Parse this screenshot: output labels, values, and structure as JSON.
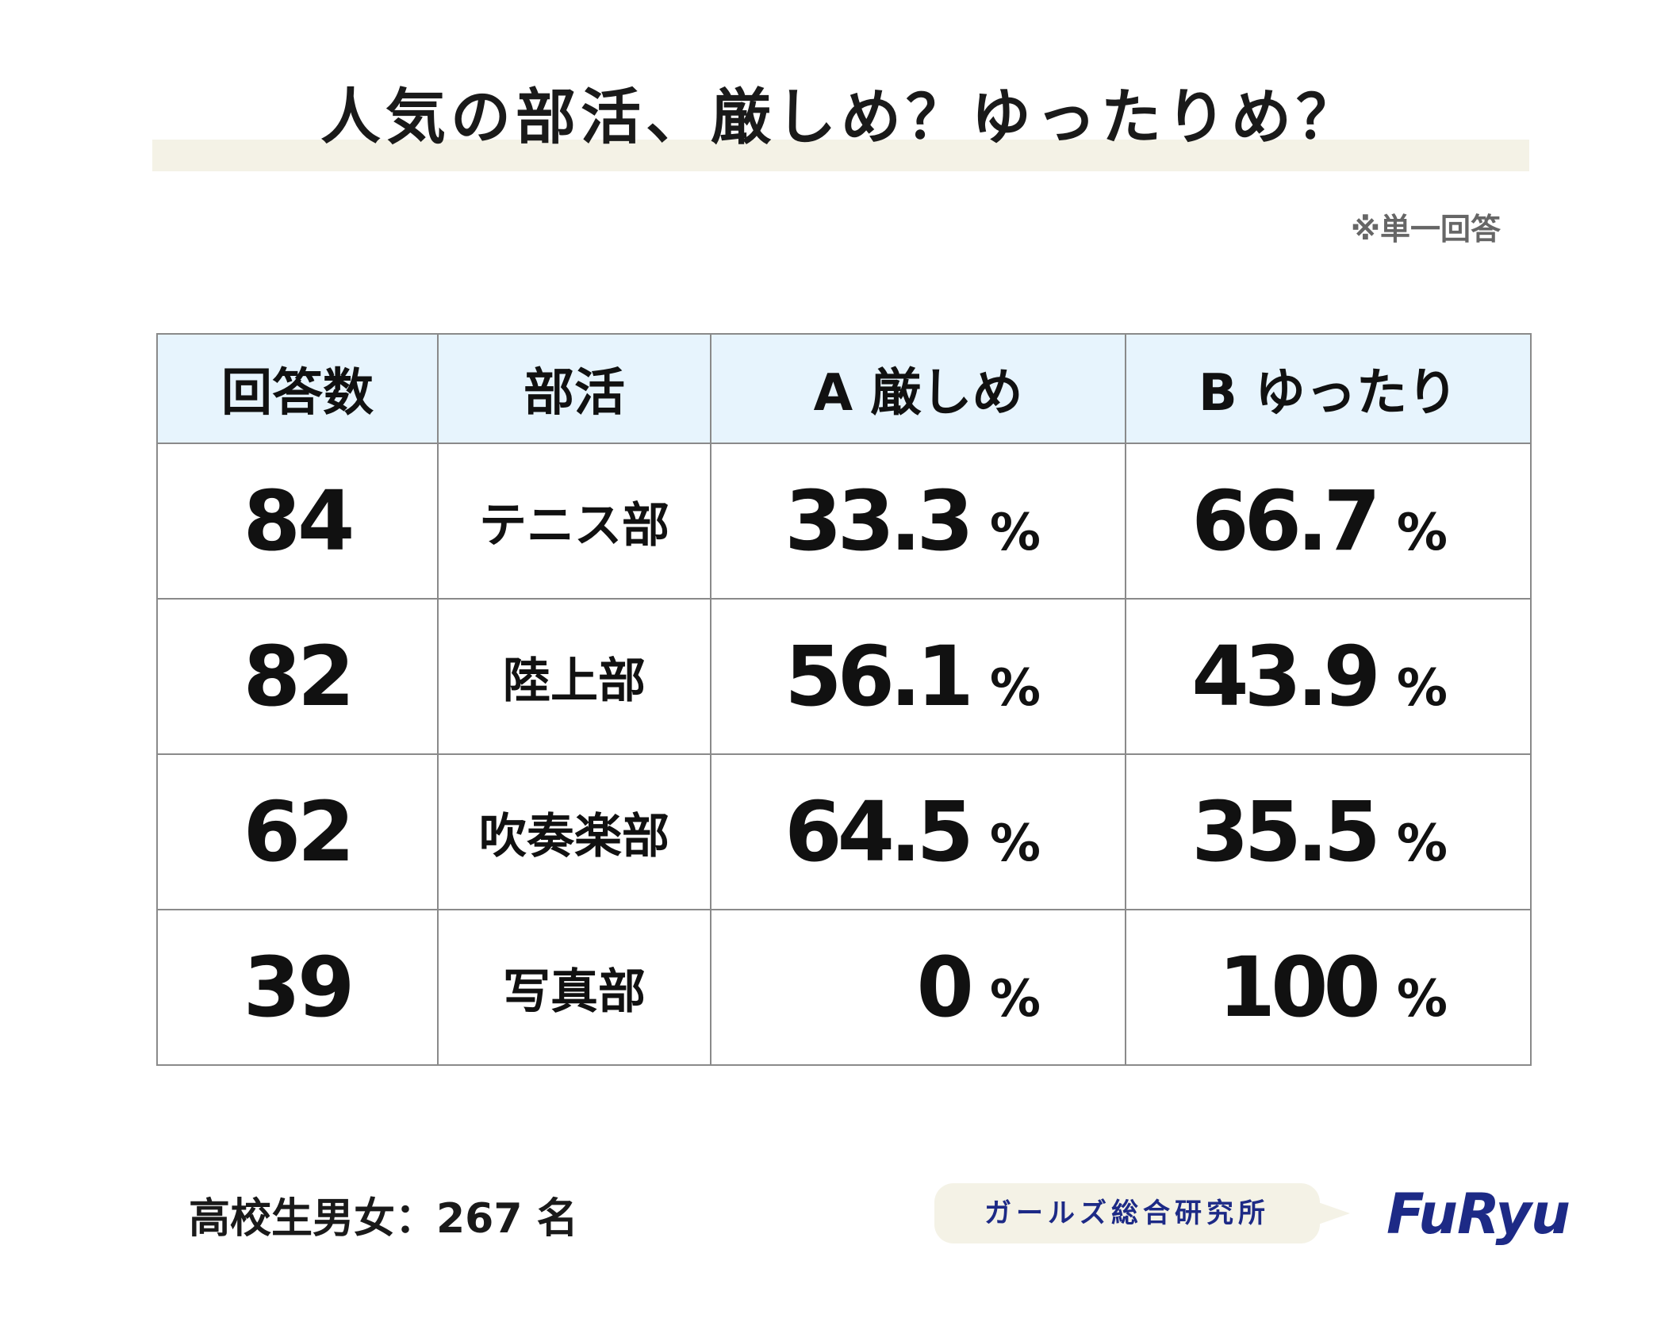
{
  "title": "人気の部活、厳しめ？ゆったりめ？",
  "note": "※単一回答",
  "table": {
    "headers": [
      "回答数",
      "部活",
      "A 厳しめ",
      "B ゆったり"
    ],
    "rows": [
      {
        "count": "84",
        "club": "テニス部",
        "strict": "33.3",
        "relaxed": "66.7"
      },
      {
        "count": "82",
        "club": "陸上部",
        "strict": "56.1",
        "relaxed": "43.9"
      },
      {
        "count": "62",
        "club": "吹奏楽部",
        "strict": "64.5",
        "relaxed": "35.5"
      },
      {
        "count": "39",
        "club": "写真部",
        "strict": "0",
        "relaxed": "100"
      }
    ],
    "unit": "%"
  },
  "chart_data": {
    "type": "table",
    "title": "人気の部活、厳しめ？ゆったりめ？",
    "columns": [
      "回答数",
      "部活",
      "A 厳しめ",
      "B ゆったり"
    ],
    "categories": [
      "テニス部",
      "陸上部",
      "吹奏楽部",
      "写真部"
    ],
    "series": [
      {
        "name": "回答数",
        "values": [
          84,
          82,
          62,
          39
        ]
      },
      {
        "name": "A 厳しめ",
        "values": [
          33.3,
          56.1,
          64.5,
          0
        ]
      },
      {
        "name": "B ゆったり",
        "values": [
          66.7,
          43.9,
          35.5,
          100
        ]
      }
    ],
    "unit": "%"
  },
  "footer": {
    "respondents": "高校生男女：267 名",
    "lab_name": "ガールズ総合研究所",
    "brand": "FuRyu"
  },
  "colors": {
    "header_bg": "#e7f4fd",
    "title_band": "#f4f2e6",
    "brand": "#1d2a86"
  }
}
